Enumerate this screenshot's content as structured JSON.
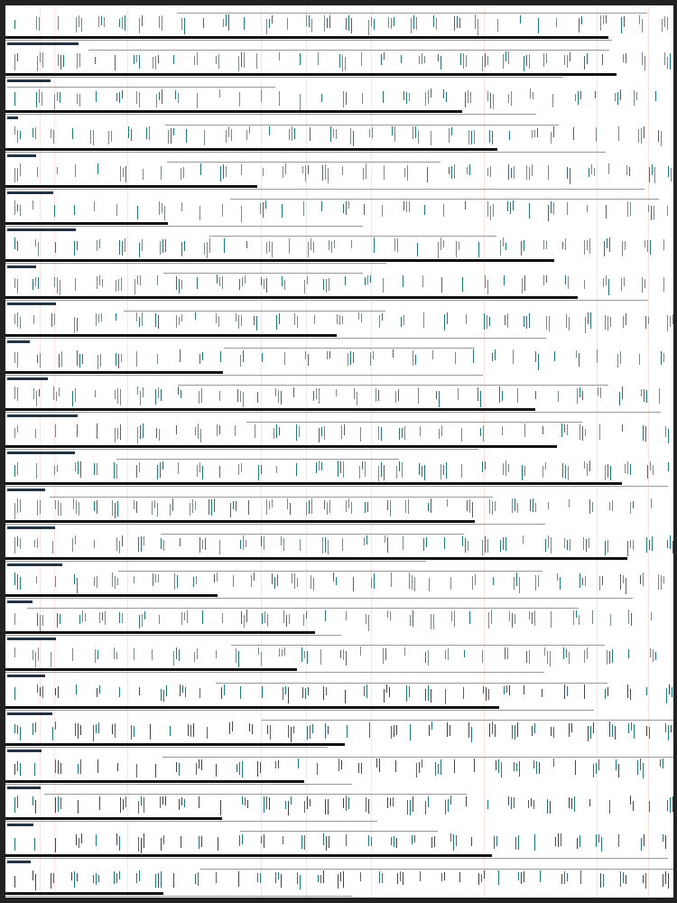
{
  "colors": {
    "frame": "#222222",
    "background": "#ffffff",
    "rule": "#111111",
    "tick_primary": "#1f7a7a",
    "tick_secondary": "#7a8a8a",
    "accent_faint": "#e88a8a"
  }
}
